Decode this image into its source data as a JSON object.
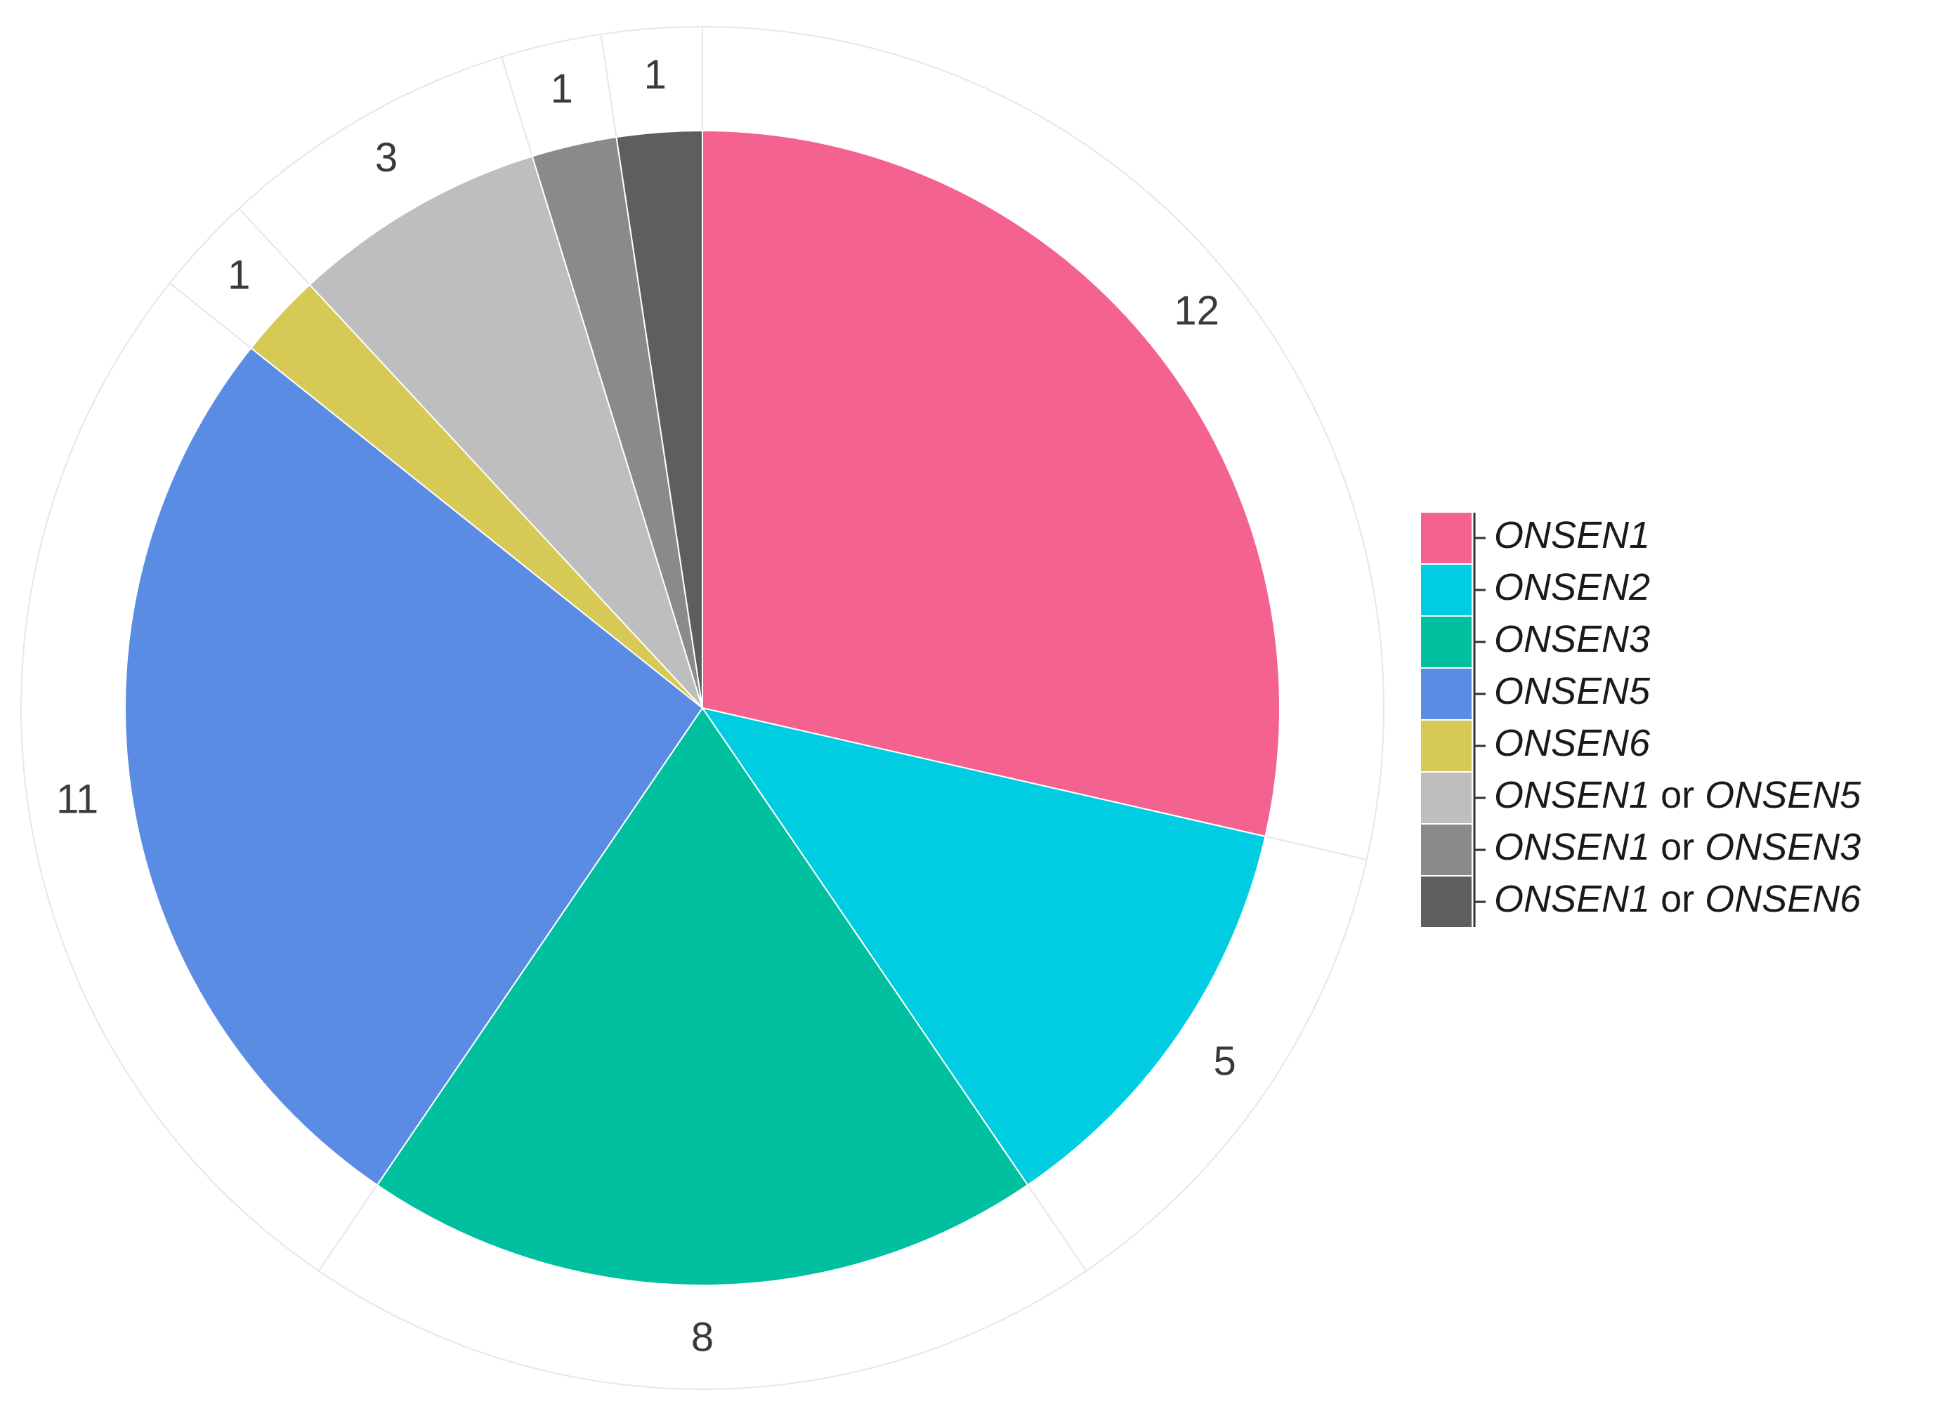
{
  "chart_data": {
    "type": "pie",
    "start": "12 o'clock",
    "direction": "clockwise",
    "slices": [
      {
        "name": "ONSEN1",
        "value": 12,
        "label": "12",
        "color": "#F46390"
      },
      {
        "name": "ONSEN2",
        "value": 5,
        "label": "5",
        "color": "#00CDE2"
      },
      {
        "name": "ONSEN3",
        "value": 8,
        "label": "8",
        "color": "#00C09F"
      },
      {
        "name": "ONSEN5",
        "value": 11,
        "label": "11",
        "color": "#5B8CE3"
      },
      {
        "name": "ONSEN6",
        "value": 1,
        "label": "1",
        "color": "#D6C955"
      },
      {
        "name": "ONSEN1 or ONSEN5",
        "value": 3,
        "label": "3",
        "color": "#BEBEBE"
      },
      {
        "name": "ONSEN1 or ONSEN3",
        "value": 1,
        "label": "1",
        "color": "#8A8A8A"
      },
      {
        "name": "ONSEN1 or ONSEN6",
        "value": 1,
        "label": "1",
        "color": "#5E5E5E"
      }
    ],
    "legend": {
      "placement": "right",
      "entries": [
        {
          "parts": [
            {
              "text": "ONSEN1",
              "italic": true
            }
          ],
          "color": "#F46390"
        },
        {
          "parts": [
            {
              "text": "ONSEN2",
              "italic": true
            }
          ],
          "color": "#00CDE2"
        },
        {
          "parts": [
            {
              "text": "ONSEN3",
              "italic": true
            }
          ],
          "color": "#00C09F"
        },
        {
          "parts": [
            {
              "text": "ONSEN5",
              "italic": true
            }
          ],
          "color": "#5B8CE3"
        },
        {
          "parts": [
            {
              "text": "ONSEN6",
              "italic": true
            }
          ],
          "color": "#D6C955"
        },
        {
          "parts": [
            {
              "text": "ONSEN1",
              "italic": true
            },
            {
              "text": " or ",
              "italic": false
            },
            {
              "text": "ONSEN5",
              "italic": true
            }
          ],
          "color": "#BEBEBE"
        },
        {
          "parts": [
            {
              "text": "ONSEN1",
              "italic": true
            },
            {
              "text": " or ",
              "italic": false
            },
            {
              "text": "ONSEN3",
              "italic": true
            }
          ],
          "color": "#8A8A8A"
        },
        {
          "parts": [
            {
              "text": "ONSEN1",
              "italic": true
            },
            {
              "text": " or ",
              "italic": false
            },
            {
              "text": "ONSEN6",
              "italic": true
            }
          ],
          "color": "#5E5E5E"
        }
      ]
    },
    "grid": true,
    "gridline_color": "#E6E6E6"
  }
}
